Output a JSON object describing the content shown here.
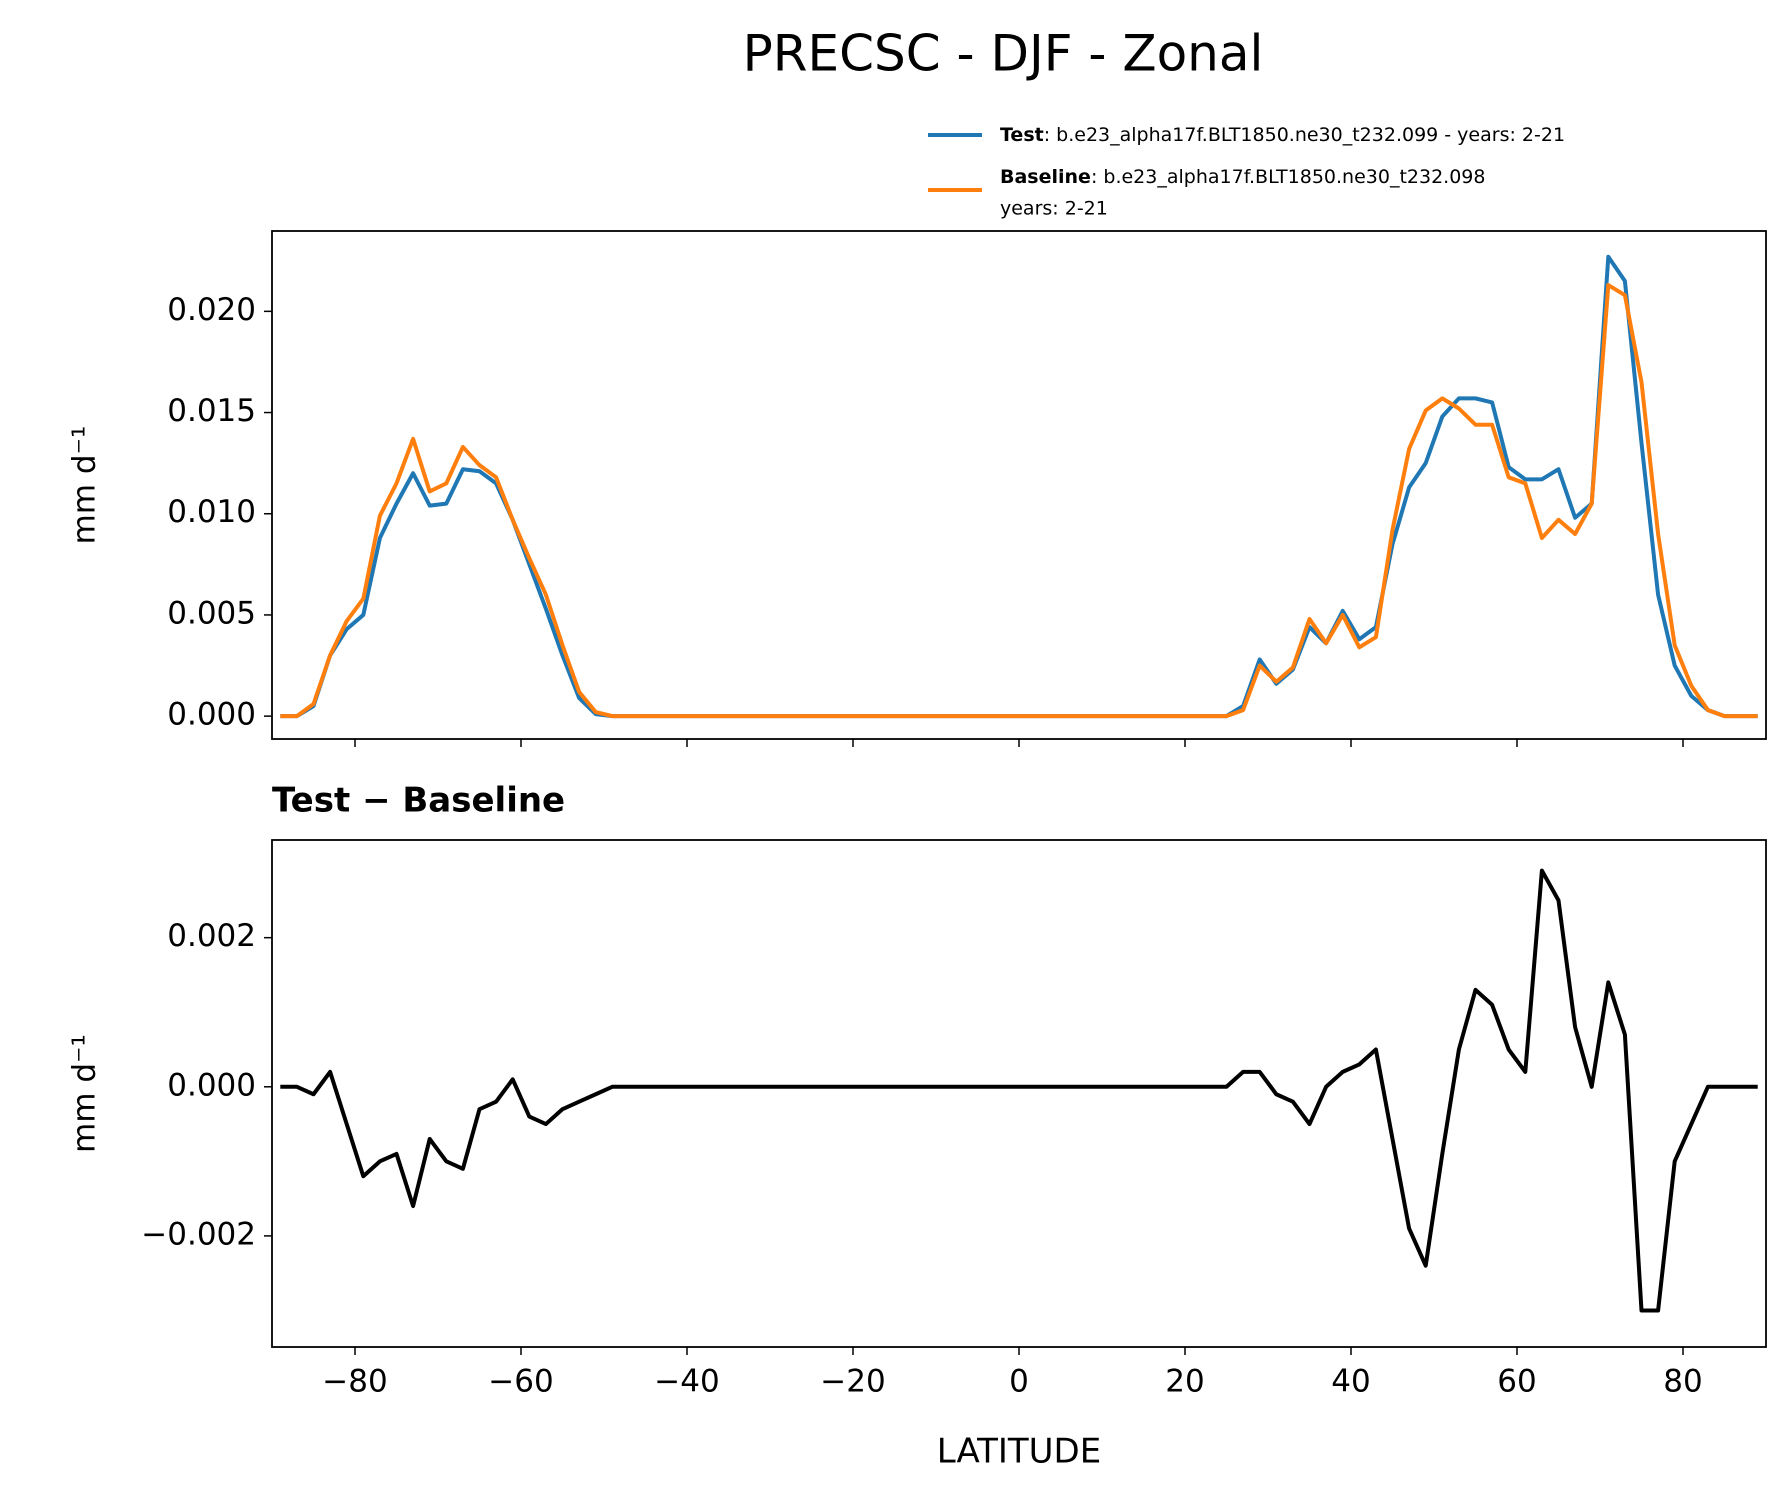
{
  "chart_data": [
    {
      "type": "line",
      "title": "PRECSC - DJF - Zonal",
      "ylabel": "mm d⁻¹",
      "x": [
        -89,
        -87,
        -85,
        -83,
        -81,
        -79,
        -77,
        -75,
        -73,
        -71,
        -69,
        -67,
        -65,
        -63,
        -61,
        -59,
        -57,
        -55,
        -53,
        -51,
        -49,
        -47,
        -45,
        -43,
        -41,
        -39,
        -37,
        -35,
        -33,
        -31,
        -29,
        -27,
        -25,
        -23,
        -21,
        -19,
        -17,
        -15,
        -13,
        -11,
        -9,
        -7,
        -5,
        -3,
        -1,
        1,
        3,
        5,
        7,
        9,
        11,
        13,
        15,
        17,
        19,
        21,
        23,
        25,
        27,
        29,
        31,
        33,
        35,
        37,
        39,
        41,
        43,
        45,
        47,
        49,
        51,
        53,
        55,
        57,
        59,
        61,
        63,
        65,
        67,
        69,
        71,
        73,
        75,
        77,
        79,
        81,
        83,
        85,
        87,
        89
      ],
      "series": [
        {
          "name": "Test",
          "label": [
            ": b.e23_alpha17f.BLT1850.ne30_t232.099 - years: 2-21"
          ],
          "color": "#1f77b4",
          "values": [
            0,
            0,
            0.0005,
            0.003,
            0.0043,
            0.005,
            0.0088,
            0.0105,
            0.012,
            0.0104,
            0.0105,
            0.0122,
            0.0121,
            0.0115,
            0.0097,
            0.0075,
            0.0053,
            0.003,
            0.0009,
            0.0001,
            0,
            0,
            0,
            0,
            0,
            0,
            0,
            0,
            0,
            0,
            0,
            0,
            0,
            0,
            0,
            0,
            0,
            0,
            0,
            0,
            0,
            0,
            0,
            0,
            0,
            0,
            0,
            0,
            0,
            0,
            0,
            0,
            0,
            0,
            0,
            0,
            0,
            0,
            0.0005,
            0.0028,
            0.0016,
            0.0023,
            0.0044,
            0.0036,
            0.0052,
            0.0038,
            0.0044,
            0.0085,
            0.0113,
            0.0125,
            0.0148,
            0.0157,
            0.0157,
            0.0155,
            0.0123,
            0.0117,
            0.0117,
            0.0122,
            0.0098,
            0.0105,
            0.0227,
            0.0215,
            0.0135,
            0.006,
            0.0025,
            0.001,
            0.0003,
            0,
            0,
            0
          ]
        },
        {
          "name": "Baseline",
          "label": [
            ": b.e23_alpha17f.BLT1850.ne30_t232.098",
            "years: 2-21"
          ],
          "color": "#ff7f0e",
          "values": [
            0,
            0,
            0.0006,
            0.003,
            0.0047,
            0.0058,
            0.0099,
            0.0115,
            0.0137,
            0.0111,
            0.0115,
            0.0133,
            0.0124,
            0.0118,
            0.0097,
            0.0078,
            0.006,
            0.0035,
            0.0012,
            0.0002,
            0,
            0,
            0,
            0,
            0,
            0,
            0,
            0,
            0,
            0,
            0,
            0,
            0,
            0,
            0,
            0,
            0,
            0,
            0,
            0,
            0,
            0,
            0,
            0,
            0,
            0,
            0,
            0,
            0,
            0,
            0,
            0,
            0,
            0,
            0,
            0,
            0,
            0,
            0.0003,
            0.0025,
            0.0017,
            0.0024,
            0.0048,
            0.0036,
            0.005,
            0.0034,
            0.0039,
            0.0092,
            0.0132,
            0.0151,
            0.0157,
            0.0152,
            0.0144,
            0.0144,
            0.0118,
            0.0115,
            0.0088,
            0.0097,
            0.009,
            0.0105,
            0.0213,
            0.0208,
            0.0165,
            0.009,
            0.0035,
            0.0015,
            0.0003,
            0,
            0,
            0
          ]
        }
      ],
      "xlim": [
        -90,
        90
      ],
      "xticks": [
        -80,
        -60,
        -40,
        -20,
        0,
        20,
        40,
        60,
        80
      ],
      "ylim": [
        -0.00113,
        0.02397
      ],
      "yticks": [
        {
          "value": 0,
          "label": "0.000"
        },
        {
          "value": 0.005,
          "label": "0.005"
        },
        {
          "value": 0.01,
          "label": "0.010"
        },
        {
          "value": 0.015,
          "label": "0.015"
        },
        {
          "value": 0.02,
          "label": "0.020"
        }
      ]
    },
    {
      "type": "line",
      "title": "Test − Baseline",
      "ylabel": "mm d⁻¹",
      "xlabel": "LATITUDE",
      "x": [
        -89,
        -87,
        -85,
        -83,
        -81,
        -79,
        -77,
        -75,
        -73,
        -71,
        -69,
        -67,
        -65,
        -63,
        -61,
        -59,
        -57,
        -55,
        -53,
        -51,
        -49,
        -47,
        -45,
        -43,
        -41,
        -39,
        -37,
        -35,
        -33,
        -31,
        -29,
        -27,
        -25,
        -23,
        -21,
        -19,
        -17,
        -15,
        -13,
        -11,
        -9,
        -7,
        -5,
        -3,
        -1,
        1,
        3,
        5,
        7,
        9,
        11,
        13,
        15,
        17,
        19,
        21,
        23,
        25,
        27,
        29,
        31,
        33,
        35,
        37,
        39,
        41,
        43,
        45,
        47,
        49,
        51,
        53,
        55,
        57,
        59,
        61,
        63,
        65,
        67,
        69,
        71,
        73,
        75,
        77,
        79,
        81,
        83,
        85,
        87,
        89
      ],
      "series": [
        {
          "color": "#000000",
          "values": [
            0,
            0,
            -0.0001,
            0.0002,
            -0.0005,
            -0.0012,
            -0.001,
            -0.0009,
            -0.0016,
            -0.0007,
            -0.001,
            -0.0011,
            -0.0003,
            -0.0002,
            0.0001,
            -0.0004,
            -0.0005,
            -0.0003,
            -0.0002,
            -0.0001,
            0,
            0,
            0,
            0,
            0,
            0,
            0,
            0,
            0,
            0,
            0,
            0,
            0,
            0,
            0,
            0,
            0,
            0,
            0,
            0,
            0,
            0,
            0,
            0,
            0,
            0,
            0,
            0,
            0,
            0,
            0,
            0,
            0,
            0,
            0,
            0,
            0,
            0,
            0.0002,
            0.0002,
            -0.0001,
            -0.0002,
            -0.0005,
            0,
            0.0002,
            0.0003,
            0.0005,
            -0.0007,
            -0.0019,
            -0.0024,
            -0.0009,
            0.0005,
            0.0013,
            0.0011,
            0.0005,
            0.0002,
            0.0029,
            0.0025,
            0.0008,
            0,
            0.0014,
            0.0007,
            -0.003,
            -0.003,
            -0.001,
            -0.0005,
            0,
            0,
            0,
            0
          ]
        }
      ],
      "xlim": [
        -90,
        90
      ],
      "xticks": [
        {
          "value": -80,
          "label": "−80"
        },
        {
          "value": -60,
          "label": "−60"
        },
        {
          "value": -40,
          "label": "−40"
        },
        {
          "value": -20,
          "label": "−20"
        },
        0,
        20,
        40,
        60,
        80
      ],
      "ylim": [
        -0.00349,
        0.00331
      ],
      "yticks": [
        {
          "value": -0.002,
          "label": "−0.002"
        },
        {
          "value": 0,
          "label": "0.000"
        },
        {
          "value": 0.002,
          "label": "0.002"
        }
      ]
    }
  ]
}
